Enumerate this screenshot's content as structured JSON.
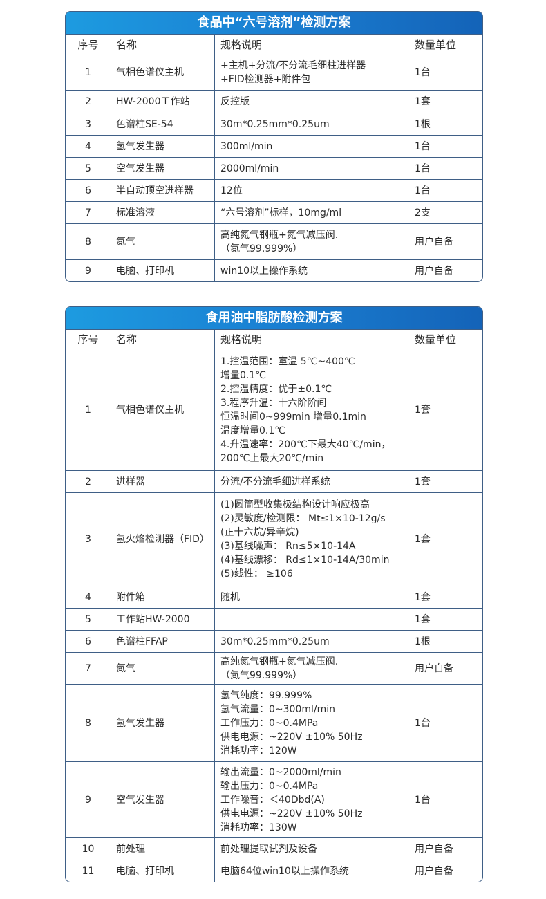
{
  "headers": [
    "序号",
    "名称",
    "规格说明",
    "数量单位"
  ],
  "tables": [
    {
      "title": "食品中“六号溶剂”检测方案",
      "rows": [
        [
          "1",
          "气相色谱仪主机",
          "+主机+分流/不分流毛细柱进样器\n+FID检测器+附件包",
          "1台"
        ],
        [
          "2",
          "HW-2000工作站",
          "反控版",
          "1套"
        ],
        [
          "3",
          "色谱柱SE-54",
          "30m*0.25mm*0.25um",
          "1根"
        ],
        [
          "4",
          "氢气发生器",
          "300ml/min",
          "1台"
        ],
        [
          "5",
          "空气发生器",
          "2000ml/min",
          "1台"
        ],
        [
          "6",
          "半自动顶空进样器",
          "12位",
          "1台"
        ],
        [
          "7",
          "标准溶液",
          "“六号溶剂”标样，10mg/ml",
          "2支"
        ],
        [
          "8",
          "氮气",
          "高纯氮气钢瓶+氮气减压阀.\n（氮气99.999%）",
          "用户自备"
        ],
        [
          "9",
          "电脑、打印机",
          "win10以上操作系统",
          "用户自备"
        ]
      ]
    },
    {
      "title": "食用油中脂肪酸检测方案",
      "rows": [
        [
          "1",
          "气相色谱仪主机",
          "1.控温范围：室温 5℃~400℃\n增量0.1℃\n2.控温精度：优于±0.1℃\n3.程序升温：十六阶阶间\n恒温时间0~999min 增量0.1min\n温度增量0.1℃\n4.升温速率：200℃下最大40℃/min，\n200℃上最大20℃/min",
          "1套"
        ],
        [
          "2",
          "进样器",
          "分流/不分流毛细进样系统",
          "1套"
        ],
        [
          "3",
          "氢火焰检测器（FID）",
          "(1)圆筒型收集极结构设计响应极高\n(2)灵敏度/检测限： Mt≤1×10-12g/s\n(正十六烷/异辛烷)\n(3)基线噪声： Rn≤5×10-14A\n(4)基线漂移： Rd≤1×10-14A/30min\n(5)线性： ≥106",
          "1套"
        ],
        [
          "4",
          "附件箱",
          "随机",
          "1套"
        ],
        [
          "5",
          "工作站HW-2000",
          "",
          "1套"
        ],
        [
          "6",
          "色谱柱FFAP",
          "30m*0.25mm*0.25um",
          "1根"
        ],
        [
          "7",
          "氮气",
          "高纯氮气钢瓶+氮气减压阀.\n（氮气99.999%）",
          "用户自备"
        ],
        [
          "8",
          "氢气发生器",
          "氢气纯度：99.999%\n氢气流量：0~300ml/min\n工作压力：0~0.4MPa\n供电电源：~220V ±10% 50Hz\n消耗功率：120W",
          "1台"
        ],
        [
          "9",
          "空气发生器",
          "输出流量：0~2000ml/min\n输出压力：0~0.4MPa\n工作噪音：＜40Dbd(A)\n供电电源：~220V ±10% 50Hz\n消耗功率：130W",
          "1台"
        ],
        [
          "10",
          "前处理",
          "前处理提取试剂及设备",
          "用户自备"
        ],
        [
          "11",
          "电脑、打印机",
          "电脑64位win10以上操作系统",
          "用户自备"
        ]
      ]
    }
  ]
}
